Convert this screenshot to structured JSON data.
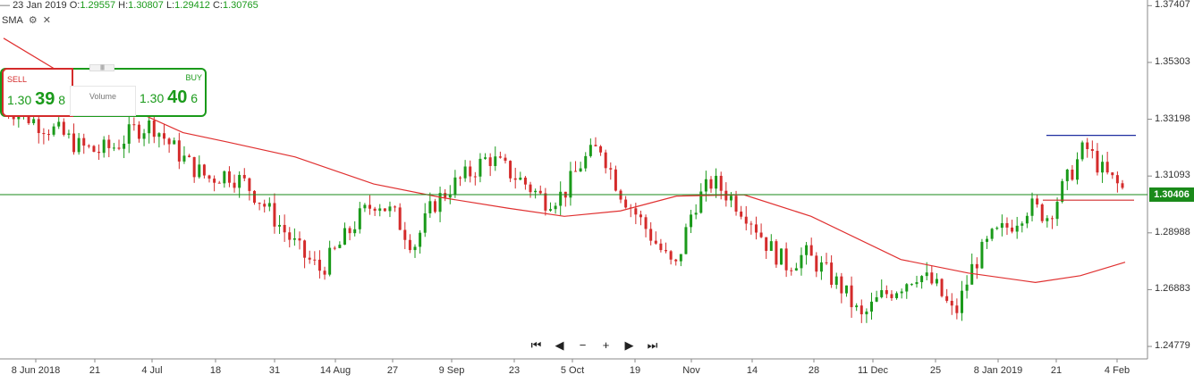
{
  "ohlc_bar": {
    "date": "23 Jan 2019",
    "open_label": "O:",
    "open": "1.29557",
    "high_label": "H:",
    "high": "1.30807",
    "low_label": "L:",
    "low": "1.29412",
    "close_label": "C:",
    "close": "1.30765"
  },
  "indicator": {
    "name": "SMA"
  },
  "trade_panel": {
    "sell_label": "SELL",
    "sell_price": {
      "big_prefix": "1.30",
      "big_digits": "39",
      "pip": "8"
    },
    "buy_label": "BUY",
    "buy_price": {
      "big_prefix": "1.30",
      "big_digits": "40",
      "pip": "6"
    },
    "volume_label": "Volume"
  },
  "nav_controls": [
    "⏮",
    "◀",
    "−",
    "+",
    "▶",
    "⏭"
  ],
  "current_price": "1.30406",
  "colors": {
    "up": "#1a9a1a",
    "down": "#d42b2b",
    "sma": "#e03030",
    "price_line": "#1a8a1a",
    "resistance": "#1f2fa0"
  },
  "chart_data": {
    "type": "candlestick",
    "y_ticks": [
      "1.37407",
      "1.35303",
      "1.33198",
      "1.31093",
      "1.28988",
      "1.26883",
      "1.24779"
    ],
    "x_ticks": [
      "8 Jun 2018",
      "21",
      "4 Jul",
      "18",
      "31",
      "14 Aug",
      "27",
      "9 Sep",
      "23",
      "5 Oct",
      "19",
      "Nov",
      "14",
      "28",
      "11 Dec",
      "25",
      "8 Jan 2019",
      "21",
      "4 Feb"
    ],
    "ylim": [
      1.2435,
      1.3755
    ],
    "sma_points": [
      [
        1.362,
        0.0
      ],
      [
        1.342,
        0.08
      ],
      [
        1.327,
        0.16
      ],
      [
        1.3235,
        0.2
      ],
      [
        1.318,
        0.26
      ],
      [
        1.308,
        0.33
      ],
      [
        1.303,
        0.39
      ],
      [
        1.299,
        0.45
      ],
      [
        1.296,
        0.5
      ],
      [
        1.298,
        0.55
      ],
      [
        1.3035,
        0.6
      ],
      [
        1.304,
        0.66
      ],
      [
        1.296,
        0.72
      ],
      [
        1.28,
        0.8
      ],
      [
        1.275,
        0.86
      ],
      [
        1.2715,
        0.92
      ],
      [
        1.274,
        0.96
      ],
      [
        1.279,
        1.0
      ]
    ],
    "candles_close_trend": [
      1.337,
      1.334,
      1.33,
      1.327,
      1.322,
      1.32,
      1.322,
      1.328,
      1.33,
      1.322,
      1.315,
      1.31,
      1.312,
      1.308,
      1.3,
      1.291,
      1.282,
      1.276,
      1.285,
      1.295,
      1.302,
      1.296,
      1.285,
      1.3,
      1.307,
      1.312,
      1.318,
      1.313,
      1.308,
      1.302,
      1.304,
      1.316,
      1.322,
      1.306,
      1.296,
      1.286,
      1.276,
      1.3,
      1.309,
      1.303,
      1.296,
      1.285,
      1.278,
      1.282,
      1.276,
      1.269,
      1.258,
      1.266,
      1.27,
      1.275,
      1.27,
      1.259,
      1.278,
      1.288,
      1.293,
      1.3,
      1.296,
      1.309,
      1.322,
      1.312,
      1.306
    ],
    "resistance_level": 1.326,
    "support_level": 1.302
  }
}
